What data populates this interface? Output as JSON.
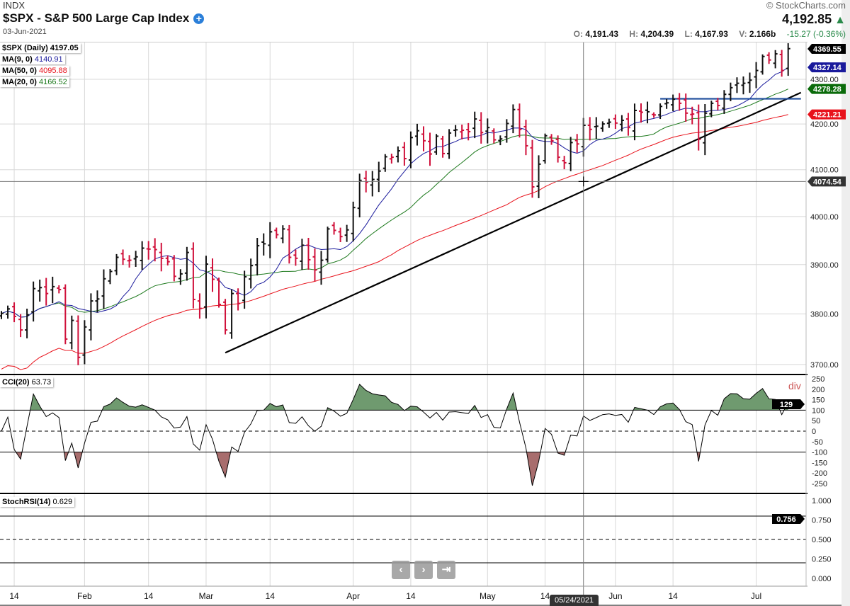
{
  "header": {
    "exchange": "INDX",
    "title": "$SPX - S&P 500 Large Cap Index",
    "date": "03-Jun-2021",
    "copyright": "© StockCharts.com",
    "last_price": "4,192.85",
    "open_label": "O:",
    "open": "4,191.43",
    "high_label": "H:",
    "high": "4,204.39",
    "low_label": "L:",
    "low": "4,167.93",
    "volume_label": "V:",
    "volume": "2.166b",
    "change": "-15.27 (-0.36%)"
  },
  "legend": {
    "price": {
      "label": "$SPX (Daily)",
      "value": "4197.05"
    },
    "ma9": {
      "label": "MA(9, 0)",
      "value": "4140.91",
      "color": "#1a1a9c"
    },
    "ma50": {
      "label": "MA(50, 0)",
      "value": "4095.88",
      "color": "#e8121b"
    },
    "ma20": {
      "label": "MA(20, 0)",
      "value": "4166.52",
      "color": "#1e7a1e"
    },
    "cci": {
      "label": "CCI(20)",
      "value": "63.73",
      "note": "div"
    },
    "stoch": {
      "label": "StochRSI(14)",
      "value": "0.629"
    }
  },
  "price_tags": {
    "last": "4369.55",
    "ma9": "4327.14",
    "ma20": "4278.28",
    "ma50": "4221.21",
    "crosshair": "4074.54",
    "cci": "129",
    "stoch": "0.756"
  },
  "crosshair": {
    "date": "05/24/2021",
    "index": 91,
    "price": 4074.54
  },
  "nav": {
    "prev": "‹",
    "next": "›",
    "end": "⇥"
  },
  "chart_data": {
    "type": "ohlc",
    "title": "$SPX - S&P 500 Large Cap Index (Daily)",
    "close": [
      3801,
      3810,
      3795,
      3768,
      3798,
      3851,
      3853,
      3841,
      3855,
      3849,
      3750,
      3787,
      3714,
      3774,
      3826,
      3830,
      3871,
      3886,
      3915,
      3911,
      3909,
      3916,
      3934,
      3932,
      3931,
      3913,
      3906,
      3876,
      3881,
      3925,
      3829,
      3811,
      3901,
      3870,
      3819,
      3768,
      3841,
      3821,
      3875,
      3898,
      3939,
      3943,
      3968,
      3962,
      3974,
      3915,
      3913,
      3940,
      3910,
      3889,
      3909,
      3974,
      3971,
      3958,
      3972,
      4019,
      4077,
      4073,
      4079,
      4097,
      4128,
      4127,
      4141,
      4124,
      4170,
      4185,
      4163,
      4134,
      4173,
      4135,
      4180,
      4187,
      4186,
      4183,
      4211,
      4181,
      4192,
      4165,
      4167,
      4201,
      4232,
      4188,
      4152,
      4063,
      4112,
      4174,
      4163,
      4127,
      4115,
      4159,
      4156,
      4197,
      4188,
      4195,
      4200,
      4204,
      4202,
      4208,
      4192,
      4230,
      4226,
      4227,
      4220,
      4239,
      4247,
      4255,
      4246,
      4224,
      4222,
      4166,
      4224,
      4246,
      4241,
      4266,
      4281,
      4291,
      4291,
      4298,
      4320,
      4352,
      4344,
      4358,
      4320,
      4370
    ],
    "x_labels": [
      {
        "i": 2,
        "t": "14"
      },
      {
        "i": 13,
        "t": "Feb"
      },
      {
        "i": 23,
        "t": "14"
      },
      {
        "i": 32,
        "t": "Mar"
      },
      {
        "i": 42,
        "t": "14"
      },
      {
        "i": 55,
        "t": "Apr"
      },
      {
        "i": 64,
        "t": "14"
      },
      {
        "i": 76,
        "t": "May"
      },
      {
        "i": 85,
        "t": "14"
      },
      {
        "i": 96,
        "t": "Jun"
      },
      {
        "i": 105,
        "t": "14"
      },
      {
        "i": 118,
        "t": "Jul"
      }
    ],
    "price_ticks": [
      "3700.00",
      "3800.00",
      "3900.00",
      "4000.00",
      "4100.00",
      "4200.00",
      "4300.00"
    ],
    "cci_ticks": [
      "250",
      "200",
      "150",
      "100",
      "50",
      "0",
      "-50",
      "-100",
      "-150",
      "-200",
      "-250"
    ],
    "stoch_ticks": [
      "1.000",
      "0.750",
      "0.500",
      "0.250",
      "0.000"
    ],
    "trendline": {
      "from": {
        "i": 35,
        "p": 3723
      },
      "to": {
        "i": 125,
        "p": 4270
      }
    },
    "resistance": {
      "from_i": 103,
      "to_i": 125,
      "p": 4256
    },
    "up_color": "#111111",
    "down_color": "#d0103a"
  }
}
